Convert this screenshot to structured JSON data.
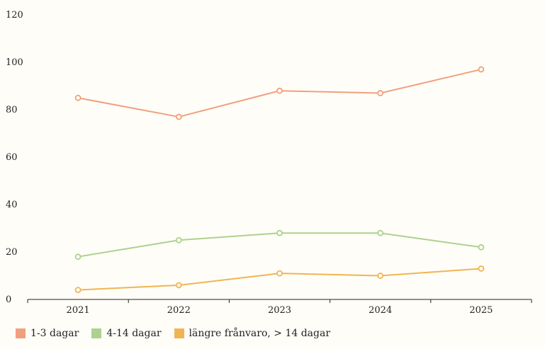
{
  "chart_data": {
    "type": "line",
    "x": [
      "2021",
      "2022",
      "2023",
      "2024",
      "2025"
    ],
    "series": [
      {
        "name": "1-3 dagar",
        "values": [
          85,
          77,
          88,
          87,
          97
        ],
        "color": "#f0a07e"
      },
      {
        "name": "4-14 dagar",
        "values": [
          18,
          25,
          28,
          28,
          22
        ],
        "color": "#add18f"
      },
      {
        "name": "längre frånvaro, > 14 dagar",
        "values": [
          4,
          6,
          11,
          10,
          13
        ],
        "color": "#f0b553"
      }
    ],
    "ylim": [
      0,
      120
    ],
    "yticks": [
      "0",
      "20",
      "40",
      "60",
      "80",
      "100",
      "120"
    ],
    "grid": false,
    "legend_position": "bottom-left"
  }
}
